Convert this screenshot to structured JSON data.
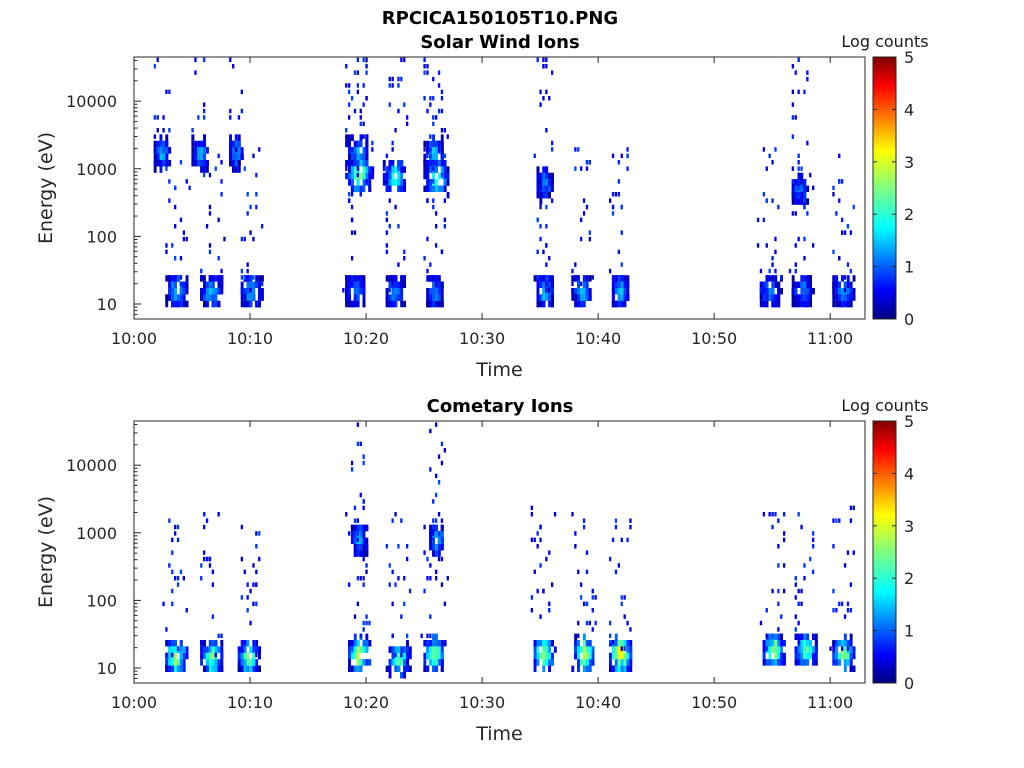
{
  "figure": {
    "title": "RPCICA150105T10.PNG"
  },
  "colors": {
    "axis": "#262626",
    "background": "#ffffff",
    "colormap": "jet"
  },
  "chart_data": [
    {
      "type": "heatmap",
      "title": "Solar Wind Ions",
      "xlabel": "Time",
      "ylabel": "Energy (eV)",
      "x_axis": "time",
      "xlim": [
        "10:00",
        "11:03"
      ],
      "xticks": [
        "10:00",
        "10:10",
        "10:20",
        "10:30",
        "10:40",
        "10:50",
        "11:00"
      ],
      "y_scale": "log",
      "ylim": [
        6,
        45000
      ],
      "yticks": [
        10,
        100,
        1000,
        10000
      ],
      "ytick_labels": [
        "10",
        "100",
        "1000",
        "10000"
      ],
      "colorbar": {
        "label": "Log counts",
        "range": [
          0,
          5
        ],
        "ticks": [
          "0",
          "1",
          "2",
          "3",
          "4",
          "5"
        ]
      },
      "clusters": [
        {
          "t": 2.3,
          "e": 1900,
          "v": 1.5,
          "w": 0.4
        },
        {
          "t": 5.6,
          "e": 1900,
          "v": 1.5,
          "w": 0.4
        },
        {
          "t": 8.7,
          "e": 1900,
          "v": 1.4,
          "w": 0.4
        },
        {
          "t": 19.2,
          "e": 1900,
          "v": 1.5,
          "w": 0.6
        },
        {
          "t": 19.3,
          "e": 900,
          "v": 2.5,
          "w": 0.7
        },
        {
          "t": 22.4,
          "e": 900,
          "v": 2.2,
          "w": 0.6
        },
        {
          "t": 25.8,
          "e": 1900,
          "v": 1.6,
          "w": 0.5
        },
        {
          "t": 26.0,
          "e": 800,
          "v": 2.4,
          "w": 0.7
        },
        {
          "t": 35.3,
          "e": 650,
          "v": 1.3,
          "w": 0.4
        },
        {
          "t": 57.3,
          "e": 550,
          "v": 1.3,
          "w": 0.4
        },
        {
          "t": 3.6,
          "e": 17,
          "v": 1.6,
          "w": 0.6
        },
        {
          "t": 6.6,
          "e": 17,
          "v": 1.5,
          "w": 0.6
        },
        {
          "t": 10.0,
          "e": 17,
          "v": 1.5,
          "w": 0.6
        },
        {
          "t": 19.0,
          "e": 17,
          "v": 1.3,
          "w": 0.6
        },
        {
          "t": 22.4,
          "e": 17,
          "v": 1.3,
          "w": 0.5
        },
        {
          "t": 25.8,
          "e": 17,
          "v": 1.3,
          "w": 0.5
        },
        {
          "t": 35.3,
          "e": 17,
          "v": 1.5,
          "w": 0.5
        },
        {
          "t": 38.5,
          "e": 17,
          "v": 1.6,
          "w": 0.5
        },
        {
          "t": 41.8,
          "e": 17,
          "v": 1.5,
          "w": 0.5
        },
        {
          "t": 54.7,
          "e": 17,
          "v": 1.2,
          "w": 0.6
        },
        {
          "t": 57.5,
          "e": 17,
          "v": 1.3,
          "w": 0.6
        },
        {
          "t": 61.0,
          "e": 17,
          "v": 1.4,
          "w": 0.6
        }
      ]
    },
    {
      "type": "heatmap",
      "title": "Cometary Ions",
      "xlabel": "Time",
      "ylabel": "Energy (eV)",
      "x_axis": "time",
      "xlim": [
        "10:00",
        "11:03"
      ],
      "xticks": [
        "10:00",
        "10:10",
        "10:20",
        "10:30",
        "10:40",
        "10:50",
        "11:00"
      ],
      "y_scale": "log",
      "ylim": [
        6,
        45000
      ],
      "yticks": [
        10,
        100,
        1000,
        10000
      ],
      "ytick_labels": [
        "10",
        "100",
        "1000",
        "10000"
      ],
      "colorbar": {
        "label": "Log counts",
        "range": [
          0,
          5
        ],
        "ticks": [
          "0",
          "1",
          "2",
          "3",
          "4",
          "5"
        ]
      },
      "clusters": [
        {
          "t": 3.5,
          "e": 16,
          "v": 2.7,
          "w": 0.6
        },
        {
          "t": 6.6,
          "e": 16,
          "v": 2.5,
          "w": 0.6
        },
        {
          "t": 9.8,
          "e": 16,
          "v": 2.6,
          "w": 0.6
        },
        {
          "t": 19.3,
          "e": 18,
          "v": 3.0,
          "w": 0.6
        },
        {
          "t": 22.7,
          "e": 15,
          "v": 2.2,
          "w": 0.6
        },
        {
          "t": 25.8,
          "e": 18,
          "v": 2.6,
          "w": 0.6
        },
        {
          "t": 35.2,
          "e": 18,
          "v": 2.8,
          "w": 0.6
        },
        {
          "t": 38.7,
          "e": 18,
          "v": 3.0,
          "w": 0.6
        },
        {
          "t": 41.8,
          "e": 18,
          "v": 3.4,
          "w": 0.6
        },
        {
          "t": 55.0,
          "e": 20,
          "v": 2.6,
          "w": 0.6
        },
        {
          "t": 57.8,
          "e": 20,
          "v": 2.4,
          "w": 0.6
        },
        {
          "t": 61.0,
          "e": 18,
          "v": 2.7,
          "w": 0.6
        },
        {
          "t": 19.3,
          "e": 900,
          "v": 1.6,
          "w": 0.4
        },
        {
          "t": 26.0,
          "e": 900,
          "v": 1.6,
          "w": 0.4
        }
      ]
    }
  ]
}
